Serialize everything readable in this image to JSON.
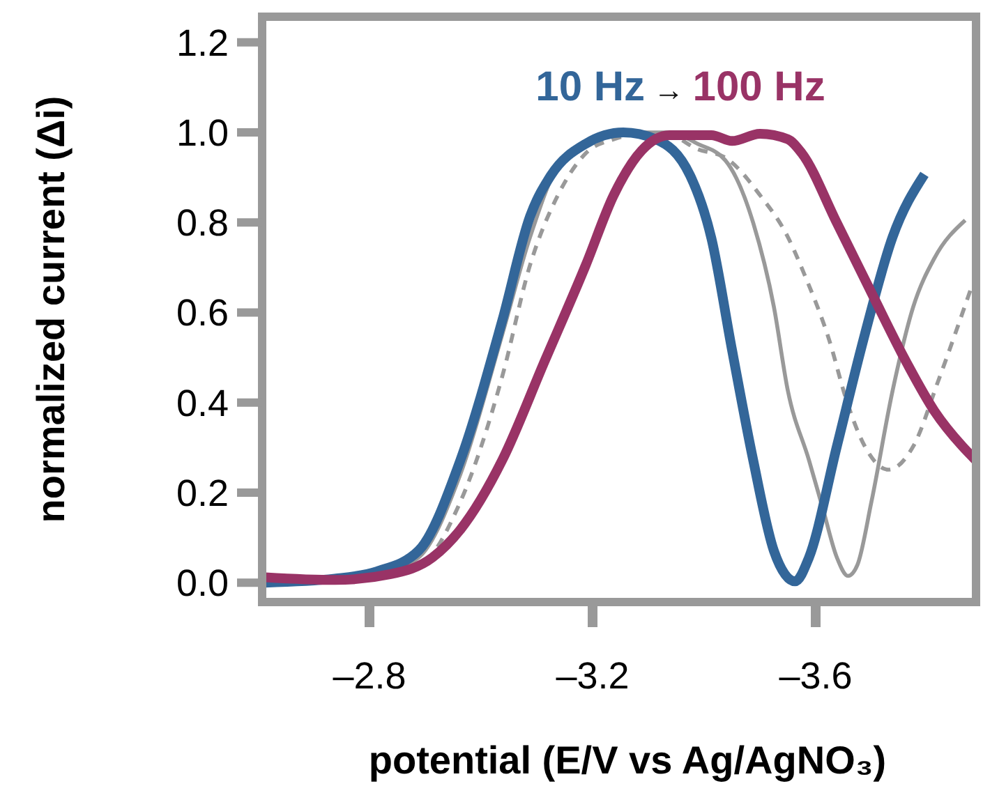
{
  "chart_data": {
    "type": "line",
    "xlabel": "potential (E/V vs Ag/AgNO₃)",
    "ylabel": "normalized current (Δi)",
    "annotations": [
      "→"
    ],
    "xlim": [
      -2.6075,
      -3.8875
    ],
    "ylim": [
      -0.043,
      1.257
    ],
    "xticks": [
      {
        "value": -2.8,
        "label": "–2.8"
      },
      {
        "value": -3.2,
        "label": "–3.2"
      },
      {
        "value": -3.6,
        "label": "–3.6"
      }
    ],
    "yticks": [
      {
        "value": 0,
        "label": "0.0"
      },
      {
        "value": 0.2,
        "label": "0.2"
      },
      {
        "value": 0.4,
        "label": "0.4"
      },
      {
        "value": 0.6,
        "label": "0.6"
      },
      {
        "value": 0.8,
        "label": "0.8"
      },
      {
        "value": 1.0,
        "label": "1.0"
      },
      {
        "value": 1.2,
        "label": "1.2"
      }
    ],
    "grid": false,
    "series": [
      {
        "color": "#999999",
        "line_style": "solid",
        "x": [
          -2.613,
          -2.813,
          -2.888,
          -2.963,
          -3.038,
          -3.088,
          -3.138,
          -3.213,
          -3.288,
          -3.338,
          -3.388,
          -3.438,
          -3.488,
          -3.525,
          -3.55,
          -3.588,
          -3.613,
          -3.638,
          -3.658,
          -3.675,
          -3.7,
          -3.738,
          -3.775,
          -3.813,
          -3.868
        ],
        "values": [
          0.0,
          0.019,
          0.056,
          0.241,
          0.551,
          0.768,
          0.923,
          0.985,
          1.0,
          1.0,
          0.975,
          0.938,
          0.799,
          0.613,
          0.427,
          0.272,
          0.164,
          0.056,
          0.015,
          0.04,
          0.18,
          0.427,
          0.613,
          0.721,
          0.805
        ]
      },
      {
        "color": "#999999",
        "line_style": "dashed",
        "x": [
          -2.613,
          -2.888,
          -2.963,
          -3.038,
          -3.088,
          -3.138,
          -3.188,
          -3.238,
          -3.288,
          -3.338,
          -3.388,
          -3.438,
          -3.5,
          -3.55,
          -3.58,
          -3.625,
          -3.655,
          -3.688,
          -3.73,
          -3.775,
          -3.82,
          -3.882
        ],
        "values": [
          0.0,
          0.04,
          0.18,
          0.458,
          0.706,
          0.861,
          0.954,
          0.985,
          0.997,
          0.994,
          0.963,
          0.944,
          0.861,
          0.768,
          0.684,
          0.536,
          0.406,
          0.303,
          0.251,
          0.303,
          0.449,
          0.666
        ]
      },
      {
        "name": "10 Hz",
        "color": "#336699",
        "line_style": "solid",
        "x": [
          -2.613,
          -2.738,
          -2.813,
          -2.888,
          -2.963,
          -3.038,
          -3.088,
          -3.125,
          -3.188,
          -3.255,
          -3.313,
          -3.375,
          -3.413,
          -3.45,
          -3.488,
          -3.525,
          -3.563,
          -3.588,
          -3.638,
          -3.688,
          -3.738,
          -3.795
        ],
        "values": [
          0.0,
          0.009,
          0.025,
          0.071,
          0.272,
          0.582,
          0.814,
          0.904,
          0.975,
          1.0,
          0.985,
          0.904,
          0.765,
          0.517,
          0.272,
          0.071,
          0.003,
          0.056,
          0.303,
          0.551,
          0.768,
          0.907
        ]
      },
      {
        "name": "100 Hz",
        "color": "#993366",
        "line_style": "solid",
        "x": [
          -2.613,
          -2.738,
          -2.838,
          -2.913,
          -2.963,
          -3.038,
          -3.113,
          -3.188,
          -3.238,
          -3.288,
          -3.338,
          -3.413,
          -3.45,
          -3.5,
          -3.55,
          -3.575,
          -3.638,
          -3.7,
          -3.763,
          -3.813,
          -3.863,
          -3.887
        ],
        "values": [
          0.012,
          0.006,
          0.019,
          0.056,
          0.118,
          0.272,
          0.489,
          0.706,
          0.861,
          0.96,
          0.994,
          0.994,
          0.981,
          0.997,
          0.985,
          0.954,
          0.799,
          0.644,
          0.489,
          0.381,
          0.303,
          0.272
        ]
      }
    ]
  }
}
